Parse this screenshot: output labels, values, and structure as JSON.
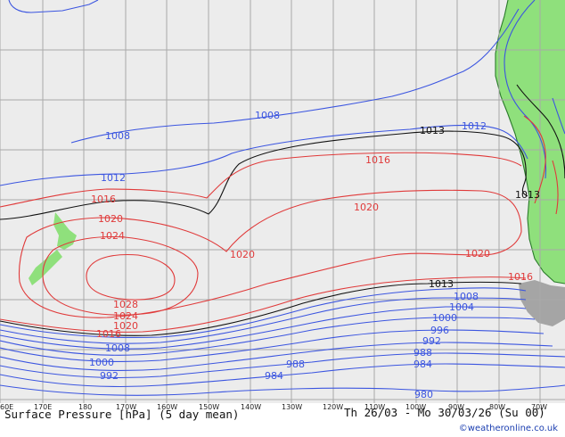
{
  "title": "Surface Pressure [hPa] (5 day mean)",
  "period": "Th 26/03 - Mo 30/03/26 (Su 00)",
  "credit": "©weatheronline.co.uk",
  "colors": {
    "ocean": "#ececec",
    "land": "#8fe07c",
    "coast": "#2a7a2a",
    "grid": "#a9a9a9",
    "low": "#3b55e0",
    "mid": "#111111",
    "high": "#e03a3a",
    "footer": "#111111"
  },
  "lon_ticks": [
    "60E",
    "170E",
    "180",
    "170W",
    "160W",
    "150W",
    "140W",
    "130W",
    "120W",
    "110W",
    "100W",
    "90W",
    "80W",
    "70W"
  ],
  "isobars": {
    "north": [
      "1008",
      "1008",
      "1012",
      "1012"
    ],
    "center": [
      "1013",
      "1013",
      "1013"
    ],
    "high": [
      "1016",
      "1016",
      "1016",
      "1020",
      "1020",
      "1020",
      "1020",
      "1024",
      "1028",
      "1024",
      "1020",
      "1016"
    ],
    "south": [
      "1008",
      "1008",
      "1004",
      "1000",
      "1000",
      "996",
      "992",
      "992",
      "988",
      "988",
      "984",
      "984",
      "980"
    ]
  }
}
